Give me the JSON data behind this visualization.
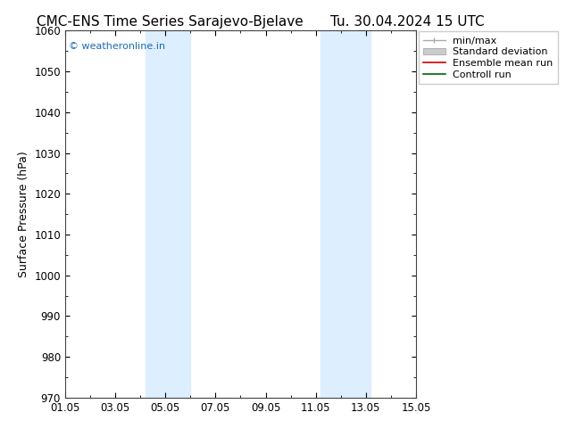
{
  "title_left": "CMC-ENS Time Series Sarajevo-Bjelave",
  "title_right": "Tu. 30.04.2024 15 UTC",
  "ylabel": "Surface Pressure (hPa)",
  "xlim": [
    0,
    14
  ],
  "ylim": [
    970,
    1060
  ],
  "yticks": [
    970,
    980,
    990,
    1000,
    1010,
    1020,
    1030,
    1040,
    1050,
    1060
  ],
  "xtick_labels": [
    "01.05",
    "03.05",
    "05.05",
    "07.05",
    "09.05",
    "11.05",
    "13.05",
    "15.05"
  ],
  "xtick_positions": [
    0,
    2,
    4,
    6,
    8,
    10,
    12,
    14
  ],
  "shaded_bands": [
    {
      "x_start": 3.2,
      "x_end": 5.0
    },
    {
      "x_start": 10.2,
      "x_end": 12.2
    }
  ],
  "shaded_color": "#ddeeff",
  "watermark_text": "© weatheronline.in",
  "watermark_color": "#1a6bb5",
  "legend_labels": [
    "min/max",
    "Standard deviation",
    "Ensemble mean run",
    "Controll run"
  ],
  "background_color": "#ffffff",
  "plot_bg_color": "#ffffff",
  "title_fontsize": 11,
  "tick_fontsize": 8.5,
  "ylabel_fontsize": 9,
  "legend_fontsize": 8
}
